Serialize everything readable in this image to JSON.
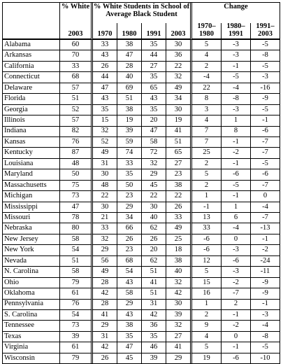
{
  "header": {
    "pct_white_label": "% White",
    "school_label": "% White Students in School of Average Black Student",
    "change_label": "Change",
    "years": [
      "2003",
      "1970",
      "1980",
      "1991",
      "2003"
    ],
    "change_periods": [
      "1970–1980",
      "1980–1991",
      "1991–2003"
    ]
  },
  "rows": [
    {
      "state": "Alabama",
      "white": "60",
      "y1970": "33",
      "y1980": "38",
      "y1991": "35",
      "y2003": "30",
      "c1": "5",
      "c2": "-3",
      "c3": "-5"
    },
    {
      "state": "Arkansas",
      "white": "70",
      "y1970": "43",
      "y1980": "47",
      "y1991": "44",
      "y2003": "36",
      "c1": "4",
      "c2": "-3",
      "c3": "-8"
    },
    {
      "state": "California",
      "white": "33",
      "y1970": "26",
      "y1980": "28",
      "y1991": "27",
      "y2003": "22",
      "c1": "2",
      "c2": "-1",
      "c3": "-5"
    },
    {
      "state": "Connecticut",
      "white": "68",
      "y1970": "44",
      "y1980": "40",
      "y1991": "35",
      "y2003": "32",
      "c1": "-4",
      "c2": "-5",
      "c3": "-3"
    },
    {
      "state": "Delaware",
      "white": "57",
      "y1970": "47",
      "y1980": "69",
      "y1991": "65",
      "y2003": "49",
      "c1": "22",
      "c2": "-4",
      "c3": "-16"
    },
    {
      "state": "Florida",
      "white": "51",
      "y1970": "43",
      "y1980": "51",
      "y1991": "43",
      "y2003": "34",
      "c1": "8",
      "c2": "-8",
      "c3": "-9"
    },
    {
      "state": "Georgia",
      "white": "52",
      "y1970": "35",
      "y1980": "38",
      "y1991": "35",
      "y2003": "30",
      "c1": "3",
      "c2": "-3",
      "c3": "-5"
    },
    {
      "state": "Illinois",
      "white": "57",
      "y1970": "15",
      "y1980": "19",
      "y1991": "20",
      "y2003": "19",
      "c1": "4",
      "c2": "1",
      "c3": "-1"
    },
    {
      "state": "Indiana",
      "white": "82",
      "y1970": "32",
      "y1980": "39",
      "y1991": "47",
      "y2003": "41",
      "c1": "7",
      "c2": "8",
      "c3": "-6"
    },
    {
      "state": "Kansas",
      "white": "76",
      "y1970": "52",
      "y1980": "59",
      "y1991": "58",
      "y2003": "51",
      "c1": "7",
      "c2": "-1",
      "c3": "-7"
    },
    {
      "state": "Kentucky",
      "white": "87",
      "y1970": "49",
      "y1980": "74",
      "y1991": "72",
      "y2003": "65",
      "c1": "25",
      "c2": "-2",
      "c3": "-7"
    },
    {
      "state": "Louisiana",
      "white": "48",
      "y1970": "31",
      "y1980": "33",
      "y1991": "32",
      "y2003": "27",
      "c1": "2",
      "c2": "-1",
      "c3": "-5"
    },
    {
      "state": "Maryland",
      "white": "50",
      "y1970": "30",
      "y1980": "35",
      "y1991": "29",
      "y2003": "23",
      "c1": "5",
      "c2": "-6",
      "c3": "-6"
    },
    {
      "state": "Massachusetts",
      "white": "75",
      "y1970": "48",
      "y1980": "50",
      "y1991": "45",
      "y2003": "38",
      "c1": "2",
      "c2": "-5",
      "c3": "-7"
    },
    {
      "state": "Michigan",
      "white": "73",
      "y1970": "22",
      "y1980": "23",
      "y1991": "22",
      "y2003": "22",
      "c1": "1",
      "c2": "-1",
      "c3": "0"
    },
    {
      "state": "Mississippi",
      "white": "47",
      "y1970": "30",
      "y1980": "29",
      "y1991": "30",
      "y2003": "26",
      "c1": "-1",
      "c2": "1",
      "c3": "-4"
    },
    {
      "state": "Missouri",
      "white": "78",
      "y1970": "21",
      "y1980": "34",
      "y1991": "40",
      "y2003": "33",
      "c1": "13",
      "c2": "6",
      "c3": "-7"
    },
    {
      "state": "Nebraska",
      "white": "80",
      "y1970": "33",
      "y1980": "66",
      "y1991": "62",
      "y2003": "49",
      "c1": "33",
      "c2": "-4",
      "c3": "-13"
    },
    {
      "state": "New Jersey",
      "white": "58",
      "y1970": "32",
      "y1980": "26",
      "y1991": "26",
      "y2003": "25",
      "c1": "-6",
      "c2": "0",
      "c3": "-1"
    },
    {
      "state": "New York",
      "white": "54",
      "y1970": "29",
      "y1980": "23",
      "y1991": "20",
      "y2003": "18",
      "c1": "-6",
      "c2": "-3",
      "c3": "-2"
    },
    {
      "state": "Nevada",
      "white": "51",
      "y1970": "56",
      "y1980": "68",
      "y1991": "62",
      "y2003": "38",
      "c1": "12",
      "c2": "-6",
      "c3": "-24"
    },
    {
      "state": "N. Carolina",
      "white": "58",
      "y1970": "49",
      "y1980": "54",
      "y1991": "51",
      "y2003": "40",
      "c1": "5",
      "c2": "-3",
      "c3": "-11"
    },
    {
      "state": "Ohio",
      "white": "79",
      "y1970": "28",
      "y1980": "43",
      "y1991": "41",
      "y2003": "32",
      "c1": "15",
      "c2": "-2",
      "c3": "-9"
    },
    {
      "state": "Oklahoma",
      "white": "61",
      "y1970": "42",
      "y1980": "58",
      "y1991": "51",
      "y2003": "42",
      "c1": "16",
      "c2": "-7",
      "c3": "-9"
    },
    {
      "state": "Pennsylvania",
      "white": "76",
      "y1970": "28",
      "y1980": "29",
      "y1991": "31",
      "y2003": "30",
      "c1": "1",
      "c2": "2",
      "c3": "-1"
    },
    {
      "state": "S. Carolina",
      "white": "54",
      "y1970": "41",
      "y1980": "43",
      "y1991": "42",
      "y2003": "39",
      "c1": "2",
      "c2": "-1",
      "c3": "-3"
    },
    {
      "state": "Tennessee",
      "white": "73",
      "y1970": "29",
      "y1980": "38",
      "y1991": "36",
      "y2003": "32",
      "c1": "9",
      "c2": "-2",
      "c3": "-4"
    },
    {
      "state": "Texas",
      "white": "39",
      "y1970": "31",
      "y1980": "35",
      "y1991": "35",
      "y2003": "27",
      "c1": "4",
      "c2": "0",
      "c3": "-8"
    },
    {
      "state": "Virginia",
      "white": "61",
      "y1970": "42",
      "y1980": "47",
      "y1991": "46",
      "y2003": "41",
      "c1": "5",
      "c2": "-1",
      "c3": "-5"
    },
    {
      "state": "Wisconsin",
      "white": "79",
      "y1970": "26",
      "y1980": "45",
      "y1991": "39",
      "y2003": "29",
      "c1": "19",
      "c2": "-6",
      "c3": "-10"
    }
  ]
}
